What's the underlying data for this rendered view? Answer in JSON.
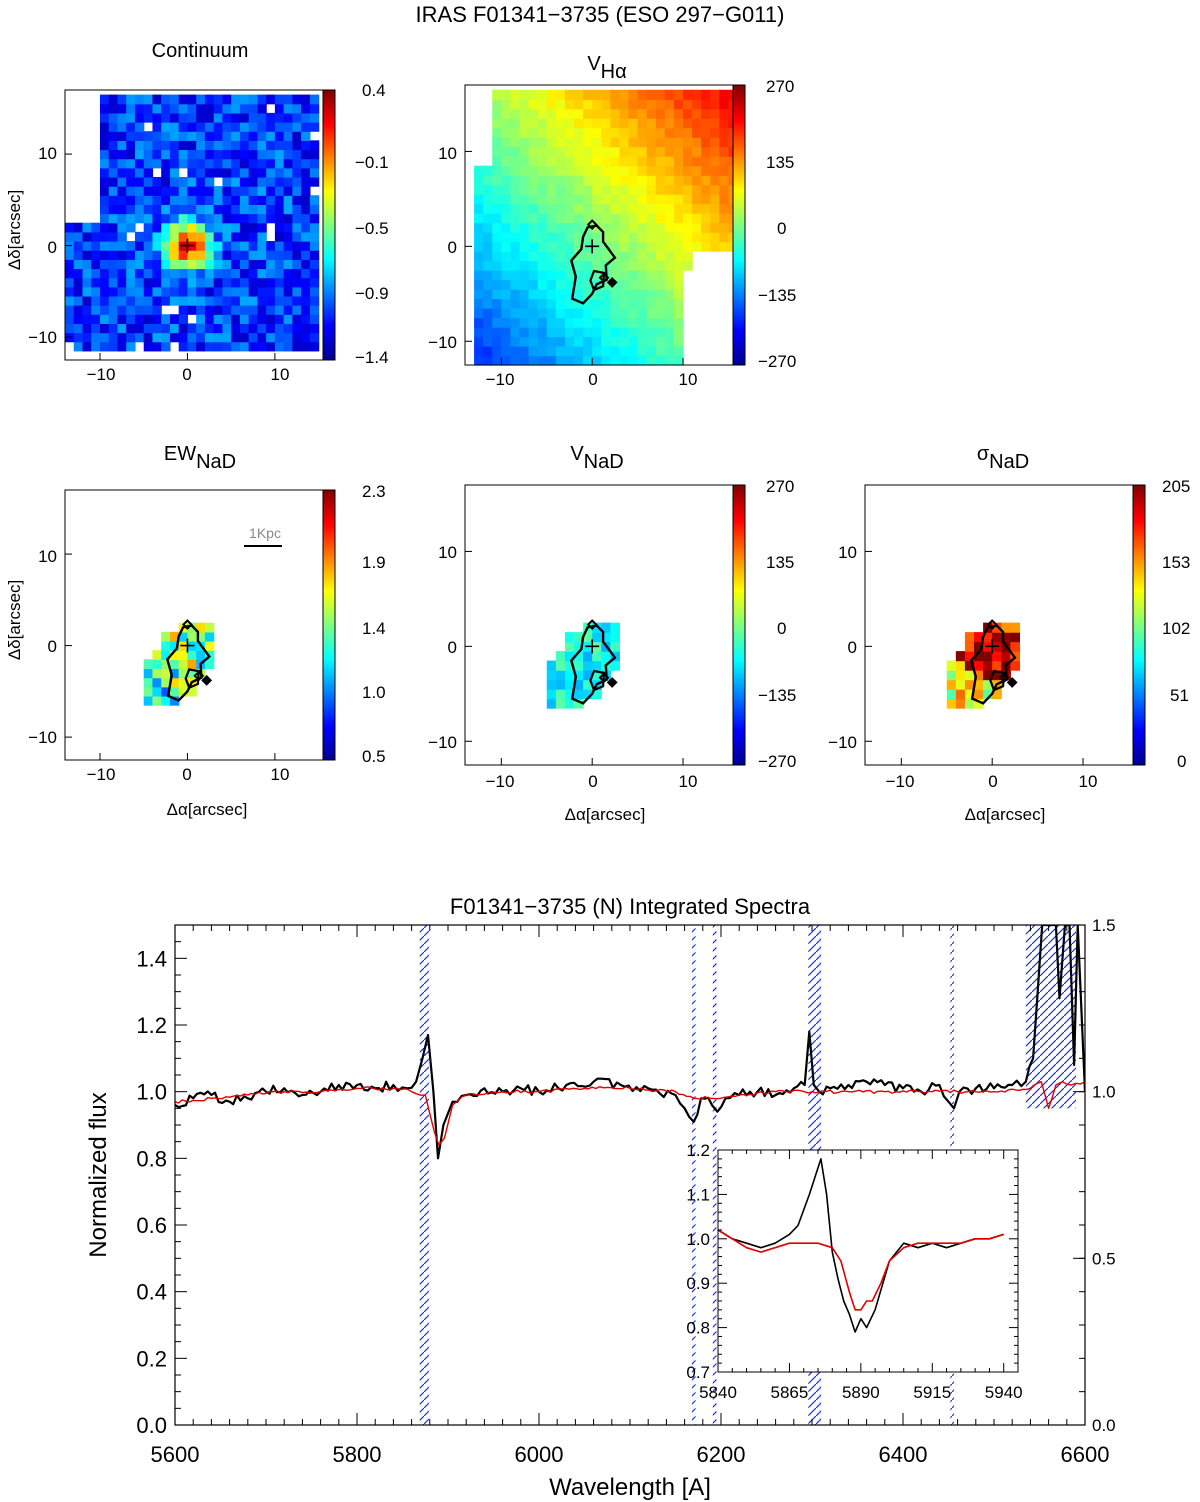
{
  "figure_title": "IRAS F01341−3735 (ESO 297−G011)",
  "chart_data": [
    {
      "type": "heatmap",
      "title": "Continuum",
      "xlabel": "",
      "ylabel": "Δδ[arcsec]",
      "xticks": [
        "−10",
        "0",
        "10"
      ],
      "yticks": [
        "−10",
        "0",
        "10"
      ],
      "xlim": [
        -14,
        15.5
      ],
      "ylim": [
        -12.5,
        17
      ],
      "colorbar_ticks": [
        "0.4",
        "−0.1",
        "−0.5",
        "−0.9",
        "−1.4"
      ],
      "colorbar_range": [
        -1.4,
        0.4
      ],
      "nucleus_marker": [
        0,
        0
      ]
    },
    {
      "type": "heatmap",
      "title_main": "V",
      "title_sub": "Hα",
      "xlabel": "",
      "ylabel": "",
      "xticks": [
        "−10",
        "0",
        "10"
      ],
      "yticks": [
        "−10",
        "0",
        "10"
      ],
      "xlim": [
        -14,
        15.5
      ],
      "ylim": [
        -12.5,
        17
      ],
      "colorbar_ticks": [
        "270",
        "135",
        "0",
        "−135",
        "−270"
      ],
      "colorbar_range": [
        -270,
        270
      ],
      "nucleus_marker": [
        0,
        0
      ]
    },
    {
      "type": "heatmap",
      "title_main": "EW",
      "title_sub": "NaD",
      "xlabel": "Δα[arcsec]",
      "ylabel": "Δδ[arcsec]",
      "xticks": [
        "−10",
        "0",
        "10"
      ],
      "yticks": [
        "−10",
        "0",
        "10"
      ],
      "xlim": [
        -14,
        15.5
      ],
      "ylim": [
        -12.5,
        17
      ],
      "colorbar_ticks": [
        "2.3",
        "1.9",
        "1.4",
        "1.0",
        "0.5"
      ],
      "colorbar_range": [
        0.5,
        2.3
      ],
      "scale_bar_label": "1Kpc",
      "nucleus_marker": [
        0,
        0
      ]
    },
    {
      "type": "heatmap",
      "title_main": "V",
      "title_sub": "NaD",
      "xlabel": "Δα[arcsec]",
      "ylabel": "",
      "xticks": [
        "−10",
        "0",
        "10"
      ],
      "yticks": [
        "−10",
        "0",
        "10"
      ],
      "xlim": [
        -14,
        15.5
      ],
      "ylim": [
        -12.5,
        17
      ],
      "colorbar_ticks": [
        "270",
        "135",
        "0",
        "−135",
        "−270"
      ],
      "colorbar_range": [
        -270,
        270
      ],
      "nucleus_marker": [
        0,
        0
      ]
    },
    {
      "type": "heatmap",
      "title_main": "σ",
      "title_sub": "NaD",
      "xlabel": "Δα[arcsec]",
      "ylabel": "",
      "xticks": [
        "−10",
        "0",
        "10"
      ],
      "yticks": [
        "−10",
        "0",
        "10"
      ],
      "xlim": [
        -14,
        15.5
      ],
      "ylim": [
        -12.5,
        17
      ],
      "colorbar_ticks": [
        "205",
        "153",
        "102",
        "51",
        "0"
      ],
      "colorbar_range": [
        0,
        205
      ],
      "nucleus_marker": [
        0,
        0
      ]
    },
    {
      "type": "line",
      "title": "F01341−3735 (N) Integrated Spectra",
      "xlabel": "Wavelength [A]",
      "ylabel": "Normalized flux",
      "xlim": [
        5600,
        6600
      ],
      "ylim": [
        0,
        1.5
      ],
      "xticks": [
        "5600",
        "5800",
        "6000",
        "6200",
        "6400",
        "6600"
      ],
      "yticks": [
        "0.0",
        "0.2",
        "0.4",
        "0.6",
        "0.8",
        "1.0",
        "1.2",
        "1.4"
      ],
      "right_yticks": [
        "0.0",
        "0.5",
        "1.0",
        "1.5"
      ],
      "series": [
        {
          "color": "#000000",
          "x": [
            5600,
            5620,
            5640,
            5660,
            5680,
            5700,
            5720,
            5740,
            5760,
            5780,
            5800,
            5820,
            5840,
            5855,
            5865,
            5872,
            5878,
            5884,
            5889,
            5895,
            5905,
            5920,
            5940,
            5960,
            5980,
            6000,
            6030,
            6060,
            6090,
            6120,
            6150,
            6160,
            6170,
            6178,
            6190,
            6196,
            6205,
            6220,
            6240,
            6260,
            6280,
            6292,
            6297,
            6302,
            6308,
            6320,
            6340,
            6360,
            6380,
            6400,
            6420,
            6440,
            6450,
            6456,
            6462,
            6480,
            6500,
            6520,
            6535,
            6543,
            6548,
            6553,
            6558,
            6563,
            6568,
            6572,
            6578,
            6583,
            6588,
            6592,
            6600
          ],
          "values": [
            0.96,
            0.98,
            0.99,
            0.97,
            0.98,
            1.0,
            1.01,
            0.99,
            1.0,
            1.02,
            1.02,
            1.01,
            1.02,
            1.01,
            1.03,
            1.1,
            1.17,
            1.0,
            0.8,
            0.9,
            0.97,
            0.99,
            1.01,
            1.0,
            1.01,
            1.0,
            1.02,
            1.03,
            1.02,
            1.01,
            0.99,
            0.95,
            0.91,
            0.98,
            0.96,
            0.94,
            0.98,
            0.99,
            1.0,
            0.99,
            1.01,
            1.02,
            1.18,
            1.02,
            1.0,
            1.01,
            1.02,
            1.03,
            1.02,
            1.01,
            1.0,
            1.02,
            0.97,
            0.95,
            1.0,
            1.01,
            1.01,
            1.02,
            1.03,
            1.1,
            1.3,
            1.5,
            1.5,
            1.5,
            1.5,
            1.28,
            1.5,
            1.5,
            1.08,
            1.5,
            1.0
          ]
        },
        {
          "color": "#e00000",
          "x": [
            5600,
            5640,
            5680,
            5720,
            5760,
            5800,
            5840,
            5860,
            5875,
            5885,
            5890,
            5896,
            5905,
            5920,
            5960,
            6000,
            6050,
            6100,
            6150,
            6170,
            6190,
            6220,
            6260,
            6300,
            6340,
            6380,
            6420,
            6460,
            6500,
            6540,
            6552,
            6560,
            6568,
            6575,
            6585,
            6600
          ],
          "values": [
            0.97,
            0.98,
            0.99,
            1.0,
            1.0,
            1.01,
            1.01,
            1.0,
            0.99,
            0.88,
            0.84,
            0.86,
            0.96,
            0.99,
            1.0,
            1.0,
            1.01,
            1.01,
            1.0,
            0.98,
            0.98,
            0.99,
            1.0,
            1.0,
            1.0,
            1.0,
            1.0,
            1.0,
            1.0,
            1.01,
            1.03,
            0.95,
            1.02,
            1.03,
            1.02,
            1.03
          ]
        }
      ],
      "masked_regions": [
        [
          5869,
          5879
        ],
        [
          6168,
          6172
        ],
        [
          6191,
          6195
        ],
        [
          6296,
          6310
        ],
        [
          6452,
          6456
        ],
        [
          6535,
          6590
        ]
      ],
      "hatch_color": "#2233cc"
    },
    {
      "type": "line",
      "title": "",
      "xlim": [
        5840,
        5945
      ],
      "ylim": [
        0.7,
        1.2
      ],
      "xticks": [
        "5840",
        "5865",
        "5890",
        "5915",
        "5940"
      ],
      "yticks": [
        "0.7",
        "0.8",
        "0.9",
        "1.0",
        "1.1",
        "1.2"
      ],
      "series": [
        {
          "color": "#000000",
          "x": [
            5840,
            5845,
            5850,
            5855,
            5860,
            5865,
            5868,
            5872,
            5876,
            5878,
            5880,
            5882,
            5884,
            5886,
            5888,
            5890,
            5892,
            5895,
            5900,
            5905,
            5910,
            5915,
            5920,
            5925,
            5930,
            5935,
            5940
          ],
          "values": [
            1.02,
            1.0,
            0.99,
            0.98,
            0.99,
            1.01,
            1.03,
            1.1,
            1.18,
            1.1,
            0.97,
            0.91,
            0.86,
            0.83,
            0.79,
            0.82,
            0.8,
            0.84,
            0.95,
            0.99,
            0.98,
            0.99,
            0.98,
            0.99,
            1.0,
            1.0,
            1.01
          ]
        },
        {
          "color": "#e00000",
          "x": [
            5840,
            5845,
            5850,
            5855,
            5860,
            5865,
            5870,
            5875,
            5880,
            5883,
            5886,
            5888,
            5890,
            5892,
            5894,
            5897,
            5900,
            5905,
            5910,
            5915,
            5920,
            5925,
            5930,
            5935,
            5940
          ],
          "values": [
            1.02,
            1.0,
            0.98,
            0.97,
            0.98,
            0.99,
            0.99,
            0.99,
            0.98,
            0.95,
            0.88,
            0.84,
            0.84,
            0.86,
            0.86,
            0.9,
            0.95,
            0.98,
            0.99,
            0.99,
            0.99,
            0.99,
            1.0,
            1.0,
            1.01
          ]
        }
      ]
    }
  ]
}
